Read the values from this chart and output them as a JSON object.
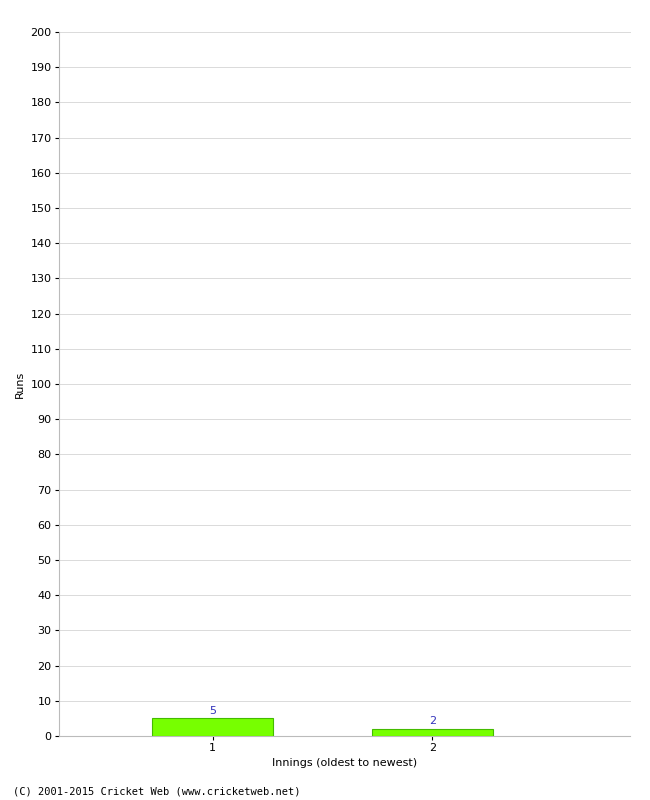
{
  "categories": [
    1,
    2
  ],
  "values": [
    5,
    2
  ],
  "bar_color": "#77ff00",
  "bar_edge_color": "#44bb00",
  "ylabel": "Runs",
  "xlabel": "Innings (oldest to newest)",
  "ylim": [
    0,
    200
  ],
  "yticks": [
    0,
    10,
    20,
    30,
    40,
    50,
    60,
    70,
    80,
    90,
    100,
    110,
    120,
    130,
    140,
    150,
    160,
    170,
    180,
    190,
    200
  ],
  "xticks": [
    1,
    2
  ],
  "annotation_color": "#3333bb",
  "annotation_fontsize": 8,
  "axis_label_fontsize": 8,
  "tick_fontsize": 8,
  "footer_text": "(C) 2001-2015 Cricket Web (www.cricketweb.net)",
  "footer_fontsize": 7.5,
  "background_color": "#ffffff",
  "grid_color": "#cccccc",
  "bar_width": 0.55,
  "xlim": [
    0.3,
    2.9
  ]
}
